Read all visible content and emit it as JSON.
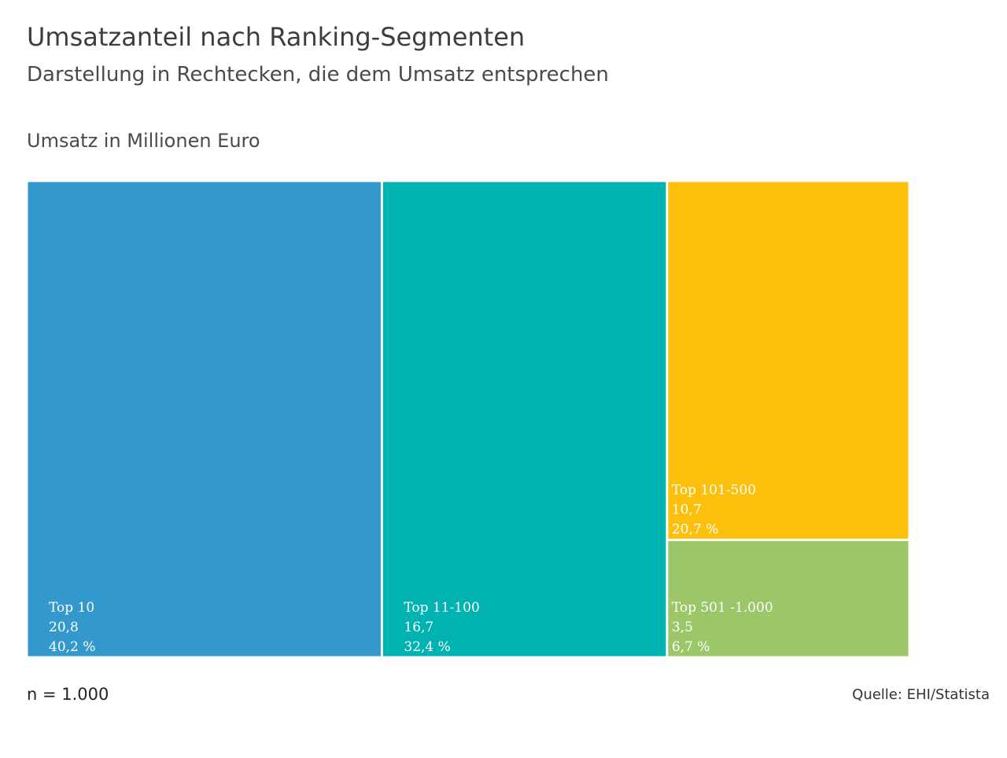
{
  "header": {
    "title": "Umsatzanteil nach Ranking-Segmenten",
    "subtitle": "Darstellung in Rechtecken, die dem Umsatz entsprechen",
    "unit_label": "Umsatz in Millionen Euro"
  },
  "chart_data": {
    "type": "treemap",
    "title": "Umsatzanteil nach Ranking-Segmenten",
    "subtitle": "Darstellung in Rechtecken, die dem Umsatz entsprechen",
    "unit": "Umsatz in Millionen Euro",
    "categories": [
      "Top 10",
      "Top 11-100",
      "Top 101-500",
      "Top 501 -1.000"
    ],
    "items": [
      {
        "label": "Top 10",
        "value": 20.8,
        "value_text": "20,8",
        "share": 40.2,
        "share_text": "40,2 %",
        "color": "#3399cc"
      },
      {
        "label": "Top 11-100",
        "value": 16.7,
        "value_text": "16,7",
        "share": 32.4,
        "share_text": "32,4 %",
        "color": "#00b2b0"
      },
      {
        "label": "Top 101-500",
        "value": 10.7,
        "value_text": "10,7",
        "share": 20.7,
        "share_text": "20,7 %",
        "color": "#fcbf0c"
      },
      {
        "label": "Top 501 -1.000",
        "value": 3.5,
        "value_text": "3,5",
        "share": 6.7,
        "share_text": "6,7 %",
        "color": "#9bc768"
      }
    ],
    "legend": "none"
  },
  "footer": {
    "sample_size": "n = 1.000",
    "source": "Quelle: EHI/Statista"
  }
}
